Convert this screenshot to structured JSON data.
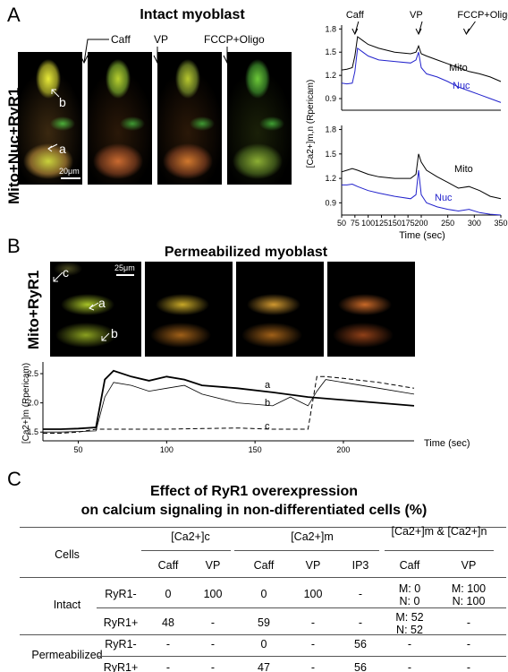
{
  "panels": {
    "A": {
      "letter": "A",
      "title": "Intact myoblast",
      "side_label": "Mito+Nuc+RyR1",
      "image_labels": [
        "Caff",
        "VP",
        "FCCP+Oligo"
      ],
      "cell_labels": [
        "b",
        "a"
      ],
      "scale_bar": "20μm"
    },
    "B": {
      "letter": "B",
      "title": "Permeabilized myoblast",
      "side_label": "Mito+RyR1",
      "cell_labels": [
        "c",
        "a",
        "b"
      ],
      "scale_bar": "25μm"
    },
    "C": {
      "letter": "C",
      "title_line1": "Effect of RyR1 overexpression",
      "title_line2": "on calcium signaling in non-differentiated cells (%)"
    }
  },
  "chart_data": [
    {
      "id": "A-top",
      "type": "line",
      "annotations": [
        "Caff",
        "VP",
        "FCCP+Oligo"
      ],
      "annotation_x": [
        75,
        195,
        285
      ],
      "xlim": [
        50,
        350
      ],
      "ylim": [
        0.75,
        1.85
      ],
      "yticks": [
        "0.9",
        "1.2",
        "1.5",
        "1.8"
      ],
      "series": [
        {
          "name": "Mito",
          "color": "#000000",
          "x": [
            50,
            60,
            70,
            75,
            80,
            90,
            100,
            120,
            150,
            180,
            190,
            195,
            200,
            210,
            230,
            250,
            270,
            290,
            310,
            330,
            350
          ],
          "y": [
            1.27,
            1.28,
            1.3,
            1.45,
            1.7,
            1.65,
            1.6,
            1.55,
            1.5,
            1.48,
            1.5,
            1.58,
            1.48,
            1.45,
            1.4,
            1.35,
            1.3,
            1.25,
            1.22,
            1.18,
            1.12
          ]
        },
        {
          "name": "Nuc",
          "color": "#2222cc",
          "x": [
            50,
            60,
            70,
            75,
            80,
            90,
            100,
            120,
            150,
            180,
            190,
            195,
            200,
            210,
            230,
            250,
            270,
            290,
            310,
            330,
            350
          ],
          "y": [
            1.1,
            1.09,
            1.1,
            1.25,
            1.55,
            1.5,
            1.45,
            1.4,
            1.38,
            1.36,
            1.4,
            1.5,
            1.3,
            1.22,
            1.18,
            1.12,
            1.05,
            1.0,
            0.95,
            0.9,
            0.85
          ]
        }
      ]
    },
    {
      "id": "A-bottom",
      "type": "line",
      "xlim": [
        50,
        350
      ],
      "ylim": [
        0.75,
        1.85
      ],
      "yticks": [
        "0.9",
        "1.2",
        "1.5",
        "1.8"
      ],
      "xticks": [
        "50",
        "75",
        "100",
        "125",
        "150",
        "175",
        "200",
        "250",
        "300",
        "350"
      ],
      "xlabel": "Time (sec)",
      "ylabel": "[Ca2+]m,n (Rpericam)",
      "series": [
        {
          "name": "Mito",
          "color": "#000000",
          "x": [
            50,
            60,
            70,
            80,
            100,
            120,
            150,
            180,
            190,
            195,
            200,
            210,
            230,
            250,
            270,
            290,
            310,
            330,
            350
          ],
          "y": [
            1.28,
            1.3,
            1.32,
            1.3,
            1.25,
            1.22,
            1.2,
            1.2,
            1.25,
            1.5,
            1.4,
            1.3,
            1.22,
            1.15,
            1.08,
            1.1,
            1.05,
            0.98,
            0.95
          ]
        },
        {
          "name": "Nuc",
          "color": "#2222cc",
          "x": [
            50,
            60,
            70,
            80,
            100,
            120,
            150,
            180,
            190,
            195,
            200,
            210,
            230,
            250,
            270,
            290,
            310,
            330,
            350
          ],
          "y": [
            1.12,
            1.12,
            1.13,
            1.1,
            1.05,
            1.02,
            0.98,
            0.95,
            1.0,
            1.3,
            1.0,
            0.9,
            0.85,
            0.82,
            0.8,
            0.82,
            0.78,
            0.76,
            0.75
          ]
        }
      ]
    },
    {
      "id": "B",
      "type": "line",
      "xlim": [
        30,
        240
      ],
      "ylim": [
        1.35,
        2.7
      ],
      "yticks": [
        "1.5",
        "2.0",
        "2.5"
      ],
      "xticks": [
        "50",
        "100",
        "150",
        "200"
      ],
      "xlabel": "Time (sec)",
      "ylabel": "[Ca2+]m (Rpericam)",
      "series": [
        {
          "name": "a",
          "style": "solid-thick",
          "x": [
            30,
            40,
            50,
            60,
            65,
            70,
            80,
            90,
            100,
            110,
            120,
            140,
            160,
            180,
            200,
            220,
            240
          ],
          "y": [
            1.55,
            1.55,
            1.56,
            1.58,
            2.4,
            2.55,
            2.45,
            2.38,
            2.45,
            2.4,
            2.3,
            2.25,
            2.18,
            2.1,
            2.05,
            2.0,
            1.95
          ]
        },
        {
          "name": "b",
          "style": "solid-thin",
          "x": [
            30,
            40,
            50,
            60,
            65,
            70,
            80,
            90,
            100,
            110,
            120,
            140,
            160,
            170,
            180,
            185,
            190,
            200,
            220,
            240
          ],
          "y": [
            1.5,
            1.5,
            1.51,
            1.52,
            2.1,
            2.35,
            2.3,
            2.2,
            2.25,
            2.3,
            2.15,
            2.0,
            1.95,
            2.1,
            1.95,
            2.2,
            2.4,
            2.35,
            2.25,
            2.15
          ]
        },
        {
          "name": "c",
          "style": "dashed",
          "x": [
            30,
            40,
            50,
            60,
            80,
            100,
            120,
            140,
            160,
            175,
            180,
            185,
            190,
            200,
            220,
            240
          ],
          "y": [
            1.48,
            1.48,
            1.5,
            1.55,
            1.55,
            1.55,
            1.56,
            1.57,
            1.55,
            1.55,
            1.55,
            2.45,
            2.45,
            2.42,
            2.35,
            2.25
          ]
        }
      ]
    }
  ],
  "table": {
    "header_row1": [
      "Cells",
      "[Ca2+]c",
      "[Ca2+]m",
      "[Ca2+]m & [Ca2+]n"
    ],
    "header_row2": [
      "Caff",
      "VP",
      "Caff",
      "VP",
      "IP3",
      "Caff",
      "VP"
    ],
    "rows": [
      {
        "group": "Intact",
        "type": "RyR1-",
        "cells": [
          "0",
          "100",
          "0",
          "100",
          "-",
          "M: 0\nN: 0",
          "M: 100\nN: 100"
        ]
      },
      {
        "group": "",
        "type": "RyR1+",
        "cells": [
          "48",
          "-",
          "59",
          "-",
          "-",
          "M: 52\nN: 52",
          "-"
        ]
      },
      {
        "group": "Permeabilized",
        "type": "RyR1-",
        "cells": [
          "-",
          "-",
          "0",
          "-",
          "56",
          "-",
          "-"
        ]
      },
      {
        "group": "",
        "type": "RyR1+",
        "cells": [
          "-",
          "-",
          "47",
          "-",
          "56",
          "-",
          "-"
        ]
      }
    ]
  }
}
